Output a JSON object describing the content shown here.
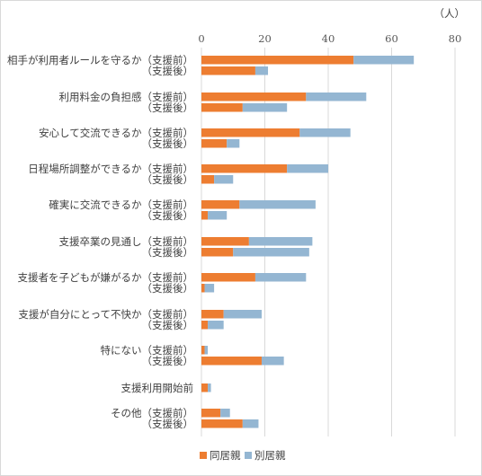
{
  "chart_data": {
    "type": "bar",
    "orientation": "horizontal",
    "stacked": true,
    "unit": "（人）",
    "xlim": [
      0,
      80
    ],
    "x_ticks": [
      "0",
      "20",
      "40",
      "60",
      "80"
    ],
    "grid": true,
    "legend_position": "bottom",
    "groups": [
      {
        "label": "相手が利用者ルールを守るか",
        "bars": [
          {
            "label": "（支援前）",
            "values": [
              48,
              19
            ]
          },
          {
            "label": "（支援後）",
            "values": [
              17,
              4
            ]
          }
        ]
      },
      {
        "label": "利用料金の負担感",
        "bars": [
          {
            "label": "（支援前）",
            "values": [
              33,
              19
            ]
          },
          {
            "label": "（支援後）",
            "values": [
              13,
              14
            ]
          }
        ]
      },
      {
        "label": "安心して交流できるか",
        "bars": [
          {
            "label": "（支援前）",
            "values": [
              31,
              16
            ]
          },
          {
            "label": "（支援後）",
            "values": [
              8,
              4
            ]
          }
        ]
      },
      {
        "label": "日程場所調整ができるか",
        "bars": [
          {
            "label": "（支援前）",
            "values": [
              27,
              13
            ]
          },
          {
            "label": "（支援後）",
            "values": [
              4,
              6
            ]
          }
        ]
      },
      {
        "label": "確実に交流できるか",
        "bars": [
          {
            "label": "（支援前）",
            "values": [
              12,
              24
            ]
          },
          {
            "label": "（支援後）",
            "values": [
              2,
              6
            ]
          }
        ]
      },
      {
        "label": "支援卒業の見通し",
        "bars": [
          {
            "label": "（支援前）",
            "values": [
              15,
              20
            ]
          },
          {
            "label": "（支援後）",
            "values": [
              10,
              24
            ]
          }
        ]
      },
      {
        "label": "支援者を子どもが嫌がるか",
        "bars": [
          {
            "label": "（支援前）",
            "values": [
              17,
              16
            ]
          },
          {
            "label": "（支援後）",
            "values": [
              1,
              3
            ]
          }
        ]
      },
      {
        "label": "支援が自分にとって不快か",
        "bars": [
          {
            "label": "（支援前）",
            "values": [
              7,
              12
            ]
          },
          {
            "label": "（支援後）",
            "values": [
              2,
              5
            ]
          }
        ]
      },
      {
        "label": "特にない",
        "bars": [
          {
            "label": "（支援前）",
            "values": [
              1,
              1
            ]
          },
          {
            "label": "（支援後）",
            "values": [
              19,
              7
            ]
          }
        ]
      },
      {
        "label": "",
        "bars": [
          {
            "label": "支援利用開始前",
            "values": [
              2,
              1
            ]
          }
        ]
      },
      {
        "label": "その他",
        "bars": [
          {
            "label": "（支援前）",
            "values": [
              6,
              3
            ]
          },
          {
            "label": "（支援後）",
            "values": [
              13,
              5
            ]
          }
        ]
      }
    ],
    "series": [
      {
        "name": "同居親",
        "color": "#ed7d31"
      },
      {
        "name": "別居親",
        "color": "#94b6d2"
      }
    ]
  }
}
